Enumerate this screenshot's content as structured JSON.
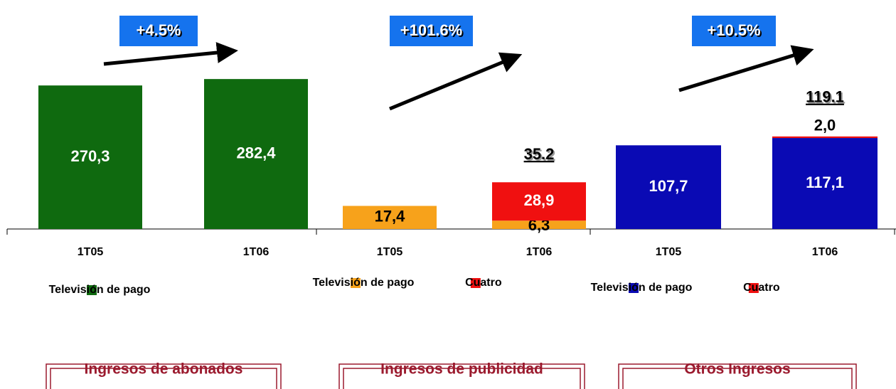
{
  "chart_data": [
    {
      "type": "bar",
      "stacked": true,
      "growth": "+4.5%",
      "title": "Ingresos de abonados",
      "categories": [
        "1T05",
        "1T06"
      ],
      "ylim": [
        0,
        300
      ],
      "series": [
        {
          "name": "Televisión de pago",
          "color": "#0f6a0f",
          "values": [
            270.3,
            282.4
          ],
          "value_labels": [
            "270,3",
            "282,4"
          ]
        }
      ]
    },
    {
      "type": "bar",
      "stacked": true,
      "growth": "+101.6%",
      "title": "Ingresos de publicidad",
      "categories": [
        "1T05",
        "1T06"
      ],
      "ylim": [
        0,
        120
      ],
      "totals": [
        null,
        35.2
      ],
      "series": [
        {
          "name": "Televisión de pago",
          "color": "#f7a21b",
          "values": [
            17.4,
            6.3
          ],
          "value_labels": [
            "17,4",
            "6,3"
          ]
        },
        {
          "name": "Cuatro",
          "color": "#f01010",
          "values": [
            null,
            28.9
          ],
          "value_labels": [
            null,
            "28,9"
          ]
        }
      ]
    },
    {
      "type": "bar",
      "stacked": true,
      "growth": "+10.5%",
      "title": "Otros Ingresos",
      "categories": [
        "1T05",
        "1T06"
      ],
      "ylim": [
        0,
        205
      ],
      "totals": [
        null,
        119.1
      ],
      "series": [
        {
          "name": "Televisión de pago",
          "color": "#0a0ab4",
          "values": [
            107.7,
            117.1
          ],
          "value_labels": [
            "107,7",
            "117,1"
          ]
        },
        {
          "name": "Cuatro",
          "color": "#f01010",
          "values": [
            null,
            2.0
          ],
          "value_labels": [
            null,
            "2,0"
          ]
        }
      ]
    }
  ]
}
